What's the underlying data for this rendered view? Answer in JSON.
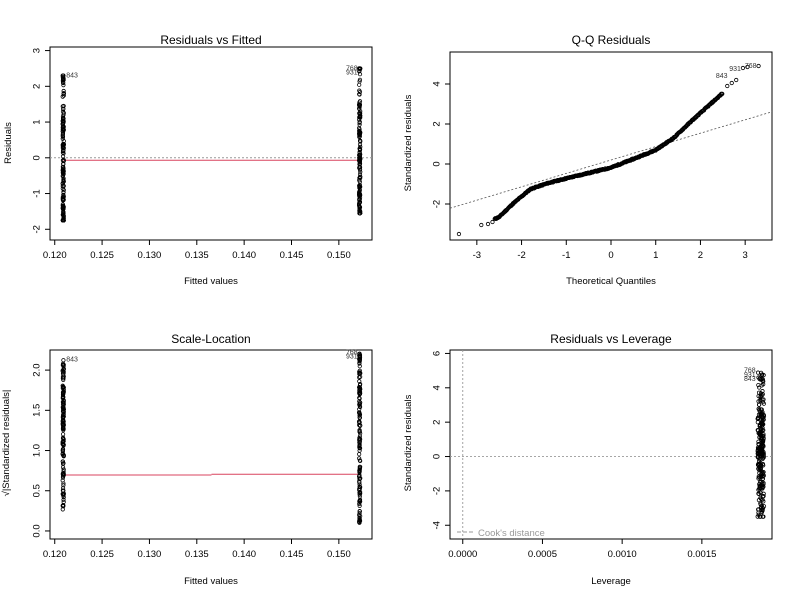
{
  "chart_data": [
    {
      "id": "rvf",
      "type": "scatter",
      "title": "Residuals vs Fitted",
      "xlabel": "Fitted values",
      "ylabel": "Residuals",
      "xlim": [
        0.1195,
        0.1535
      ],
      "ylim": [
        -2.3,
        3.1
      ],
      "xticks": [
        0.12,
        0.125,
        0.13,
        0.135,
        0.14,
        0.145,
        0.15
      ],
      "xtick_labels": [
        "0.120",
        "0.125",
        "0.130",
        "0.135",
        "0.140",
        "0.145",
        "0.150"
      ],
      "yticks": [
        -2,
        -1,
        0,
        1,
        2,
        3
      ],
      "ytick_labels": [
        "-2",
        "-1",
        "0",
        "1",
        "2",
        "3"
      ],
      "fitted_groups": [
        0.1209,
        0.1522
      ],
      "group_ranges": [
        [
          -1.75,
          2.3
        ],
        [
          -1.55,
          2.5
        ]
      ],
      "reference_line_y": 0,
      "smoother_y": -0.07,
      "point_labels": [
        {
          "text": "843",
          "x": 0.1209,
          "y": 2.3
        },
        {
          "text": "768",
          "x": 0.1522,
          "y": 2.5
        },
        {
          "text": "931",
          "x": 0.1522,
          "y": 2.38
        }
      ]
    },
    {
      "id": "qq",
      "type": "scatter",
      "title": "Q-Q Residuals",
      "xlabel": "Theoretical Quantiles",
      "ylabel": "Standardized residuals",
      "xlim": [
        -3.6,
        3.6
      ],
      "ylim": [
        -3.8,
        5.6
      ],
      "xticks": [
        -3,
        -2,
        -1,
        0,
        1,
        2,
        3
      ],
      "xtick_labels": [
        "-3",
        "-2",
        "-1",
        "0",
        "1",
        "2",
        "3"
      ],
      "yticks": [
        -2,
        0,
        2,
        4
      ],
      "ytick_labels": [
        "-2",
        "0",
        "2",
        "4"
      ],
      "reference_line": {
        "intercept": 0.2,
        "slope": 0.67
      },
      "curve": [
        [
          -3.4,
          -3.5
        ],
        [
          -2.9,
          -3.05
        ],
        [
          -2.5,
          -2.65
        ],
        [
          -2.2,
          -2.0
        ],
        [
          -1.8,
          -1.25
        ],
        [
          -1.4,
          -0.95
        ],
        [
          -1.0,
          -0.72
        ],
        [
          -0.5,
          -0.45
        ],
        [
          0.0,
          -0.18
        ],
        [
          0.5,
          0.25
        ],
        [
          1.0,
          0.7
        ],
        [
          1.4,
          1.3
        ],
        [
          1.8,
          2.15
        ],
        [
          2.2,
          2.95
        ],
        [
          2.5,
          3.55
        ],
        [
          2.8,
          4.2
        ],
        [
          3.0,
          4.75
        ],
        [
          3.3,
          4.9
        ]
      ],
      "point_labels": [
        {
          "text": "768",
          "x": 3.3,
          "y": 4.9
        },
        {
          "text": "931",
          "x": 2.95,
          "y": 4.8
        },
        {
          "text": "843",
          "x": 2.65,
          "y": 4.45
        }
      ]
    },
    {
      "id": "sl",
      "type": "scatter",
      "title": "Scale-Location",
      "xlabel": "Fitted values",
      "ylabel": "√|Standardized residuals|",
      "xlim": [
        0.1195,
        0.1535
      ],
      "ylim": [
        -0.1,
        2.25
      ],
      "xticks": [
        0.12,
        0.125,
        0.13,
        0.135,
        0.14,
        0.145,
        0.15
      ],
      "xtick_labels": [
        "0.120",
        "0.125",
        "0.130",
        "0.135",
        "0.140",
        "0.145",
        "0.150"
      ],
      "yticks": [
        0.0,
        0.5,
        1.0,
        1.5,
        2.0
      ],
      "ytick_labels": [
        "0.0",
        "0.5",
        "1.0",
        "1.5",
        "2.0"
      ],
      "fitted_groups": [
        0.1209,
        0.1522
      ],
      "group_ranges": [
        [
          0.22,
          2.13
        ],
        [
          0.08,
          2.22
        ]
      ],
      "smoother_y": [
        0.695,
        0.705
      ],
      "point_labels": [
        {
          "text": "843",
          "x": 0.1209,
          "y": 2.13
        },
        {
          "text": "768",
          "x": 0.1522,
          "y": 2.22
        },
        {
          "text": "931",
          "x": 0.1522,
          "y": 2.17
        }
      ]
    },
    {
      "id": "rvl",
      "type": "scatter",
      "title": "Residuals vs Leverage",
      "xlabel": "Leverage",
      "ylabel": "Standardized residuals",
      "xlim": [
        -8e-05,
        0.00194
      ],
      "ylim": [
        -4.8,
        6.2
      ],
      "xticks": [
        0.0,
        0.0005,
        0.001,
        0.0015
      ],
      "xtick_labels": [
        "0.0000",
        "0.0005",
        "0.0010",
        "0.0015"
      ],
      "yticks": [
        -4,
        -2,
        0,
        2,
        4,
        6
      ],
      "ytick_labels": [
        "-4",
        "-2",
        "0",
        "2",
        "4",
        "6"
      ],
      "leverage_groups": [
        0.00185,
        0.00189
      ],
      "group_range": [
        -3.5,
        5.0
      ],
      "reference_line_y": 0,
      "reference_line_x": 0,
      "legend_text": "Cook's distance",
      "point_labels": [
        {
          "text": "768",
          "x": 0.00185,
          "y": 5.0
        },
        {
          "text": "931",
          "x": 0.00185,
          "y": 4.75
        },
        {
          "text": "843",
          "x": 0.00185,
          "y": 4.5
        }
      ]
    }
  ]
}
